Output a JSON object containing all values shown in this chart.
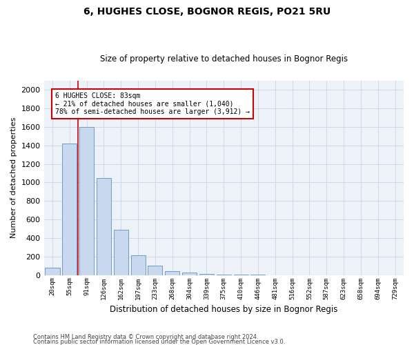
{
  "title": "6, HUGHES CLOSE, BOGNOR REGIS, PO21 5RU",
  "subtitle": "Size of property relative to detached houses in Bognor Regis",
  "xlabel": "Distribution of detached houses by size in Bognor Regis",
  "ylabel": "Number of detached properties",
  "categories": [
    "20sqm",
    "55sqm",
    "91sqm",
    "126sqm",
    "162sqm",
    "197sqm",
    "233sqm",
    "268sqm",
    "304sqm",
    "339sqm",
    "375sqm",
    "410sqm",
    "446sqm",
    "481sqm",
    "516sqm",
    "552sqm",
    "587sqm",
    "623sqm",
    "658sqm",
    "694sqm",
    "729sqm"
  ],
  "bar_values": [
    80,
    1420,
    1600,
    1050,
    490,
    210,
    105,
    40,
    30,
    15,
    8,
    3,
    2,
    1,
    1,
    0,
    0,
    0,
    0,
    0,
    0
  ],
  "bar_color": "#c8d8ee",
  "bar_edge_color": "#6090c0",
  "grid_color": "#d0d8e8",
  "bg_color": "#edf2f9",
  "annotation_text": "6 HUGHES CLOSE: 83sqm\n← 21% of detached houses are smaller (1,040)\n78% of semi-detached houses are larger (3,912) →",
  "annotation_box_color": "#cc0000",
  "red_line_color": "#cc0000",
  "ylim": [
    0,
    2100
  ],
  "yticks": [
    0,
    200,
    400,
    600,
    800,
    1000,
    1200,
    1400,
    1600,
    1800,
    2000
  ],
  "footer_line1": "Contains HM Land Registry data © Crown copyright and database right 2024.",
  "footer_line2": "Contains public sector information licensed under the Open Government Licence v3.0."
}
